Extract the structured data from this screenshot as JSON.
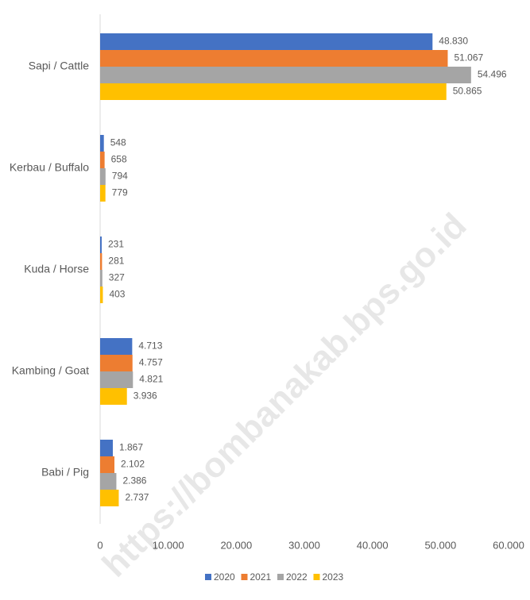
{
  "chart_data": {
    "type": "hbar",
    "watermark": "https://bombanakab.bps.go.id",
    "categories": [
      "Sapi / Cattle",
      "Kerbau / Buffalo",
      "Kuda / Horse",
      "Kambing / Goat",
      "Babi / Pig"
    ],
    "series": [
      {
        "name": "2020",
        "color": "#4472c4",
        "values": [
          48830,
          548,
          231,
          4713,
          1867
        ],
        "value_labels": [
          "48.830",
          "548",
          "231",
          "4.713",
          "1.867"
        ]
      },
      {
        "name": "2021",
        "color": "#ed7d31",
        "values": [
          51067,
          658,
          281,
          4757,
          2102
        ],
        "value_labels": [
          "51.067",
          "658",
          "281",
          "4.757",
          "2.102"
        ]
      },
      {
        "name": "2022",
        "color": "#a5a5a5",
        "values": [
          54496,
          794,
          327,
          4821,
          2386
        ],
        "value_labels": [
          "54.496",
          "794",
          "327",
          "4.821",
          "2.386"
        ]
      },
      {
        "name": "2023",
        "color": "#ffc000",
        "values": [
          50865,
          779,
          403,
          3936,
          2737
        ],
        "value_labels": [
          "50.865",
          "779",
          "403",
          "3.936",
          "2.737"
        ]
      }
    ],
    "xlim": [
      0,
      60000
    ],
    "xticks": [
      0,
      {
        "value": 10000,
        "label": "10.000"
      },
      {
        "value": 20000,
        "label": "20.000"
      },
      {
        "value": 30000,
        "label": "30.000"
      },
      {
        "value": 40000,
        "label": "40.000"
      },
      {
        "value": 50000,
        "label": "50.000"
      },
      {
        "value": 60000,
        "label": "60.000"
      }
    ],
    "grid": false,
    "legend": "bottom"
  }
}
